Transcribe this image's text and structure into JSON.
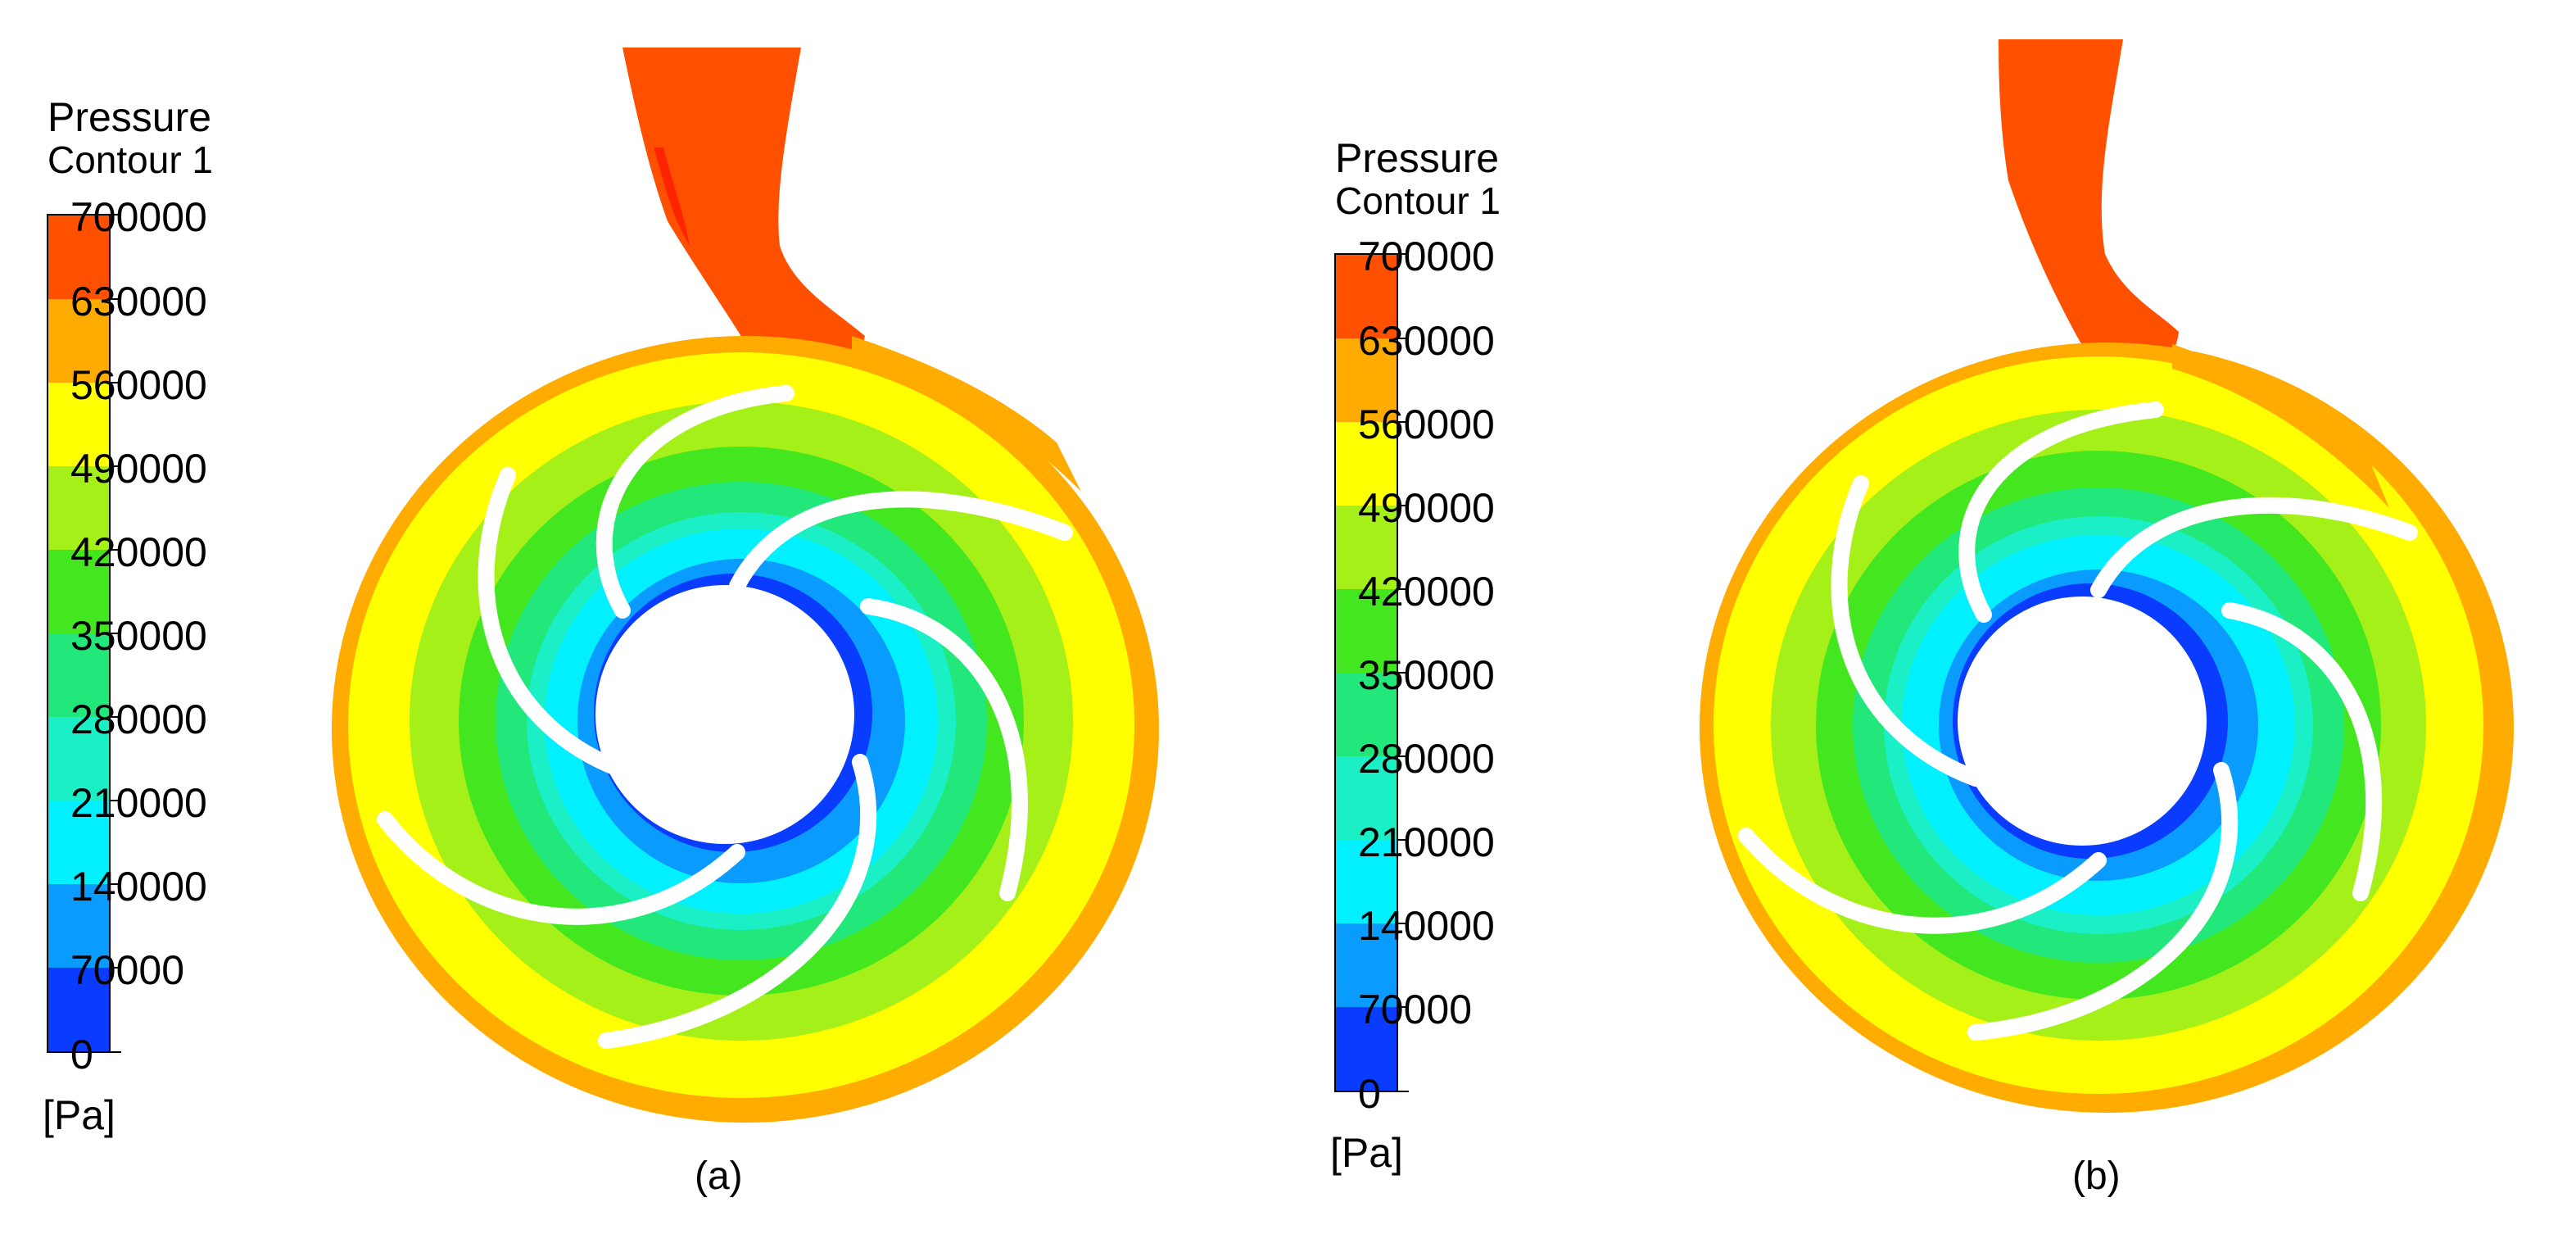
{
  "figure": {
    "colormap": [
      "#0a3cff",
      "#0a9bff",
      "#00f0ff",
      "#1aefc5",
      "#22e77a",
      "#44e61f",
      "#a5f018",
      "#ffff00",
      "#ffab00",
      "#ff5000"
    ],
    "background": "#ffffff"
  },
  "panels": [
    {
      "id": "a",
      "caption": "(a)",
      "legend": {
        "title": "Pressure",
        "subtitle": "Contour 1",
        "unit": "[Pa]",
        "ticks": [
          "700000",
          "630000",
          "560000",
          "490000",
          "420000",
          "350000",
          "280000",
          "210000",
          "140000",
          "70000",
          "0"
        ]
      }
    },
    {
      "id": "b",
      "caption": "(b)",
      "legend": {
        "title": "Pressure",
        "subtitle": "Contour 1",
        "unit": "[Pa]",
        "ticks": [
          "700000",
          "630000",
          "560000",
          "490000",
          "420000",
          "350000",
          "280000",
          "210000",
          "140000",
          "70000",
          "0"
        ]
      }
    }
  ]
}
